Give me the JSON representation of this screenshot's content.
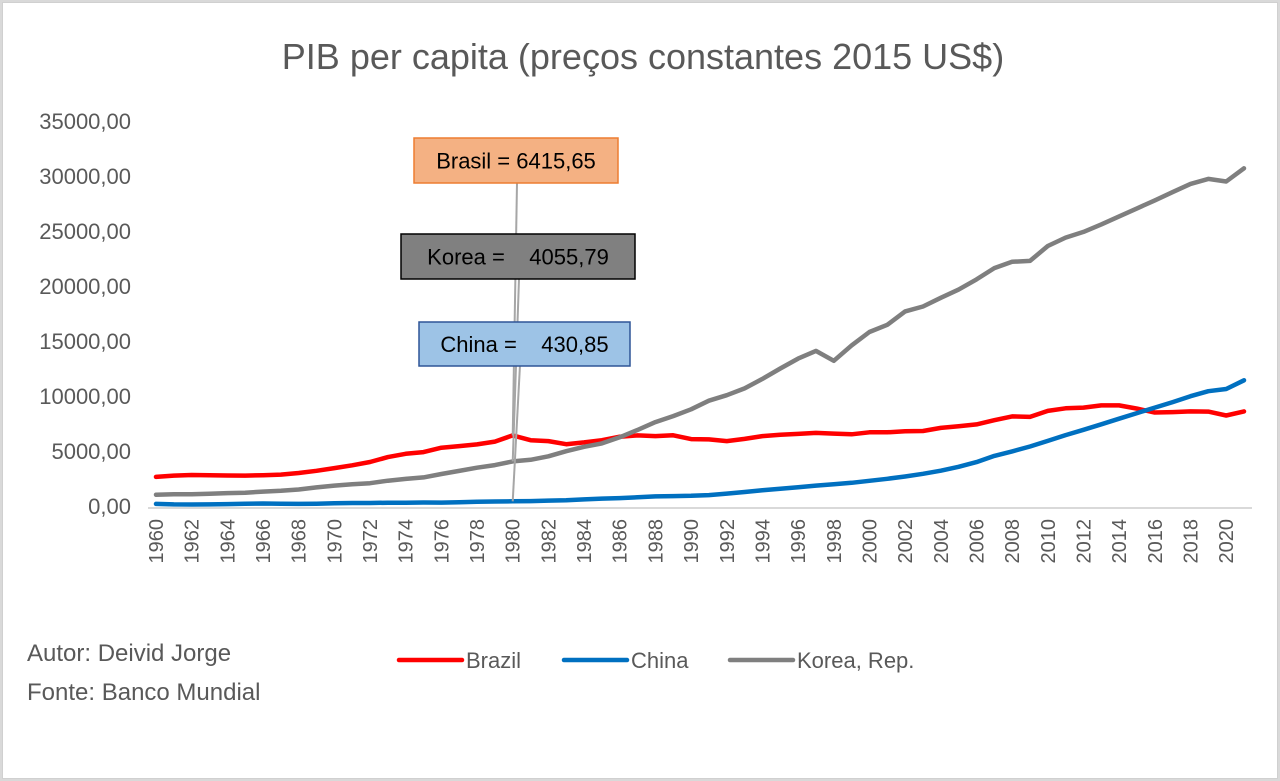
{
  "chart_data": {
    "type": "line",
    "title": "PIB per capita (preços constantes 2015 US$)",
    "xlabel": "",
    "ylabel": "",
    "ylim": [
      0,
      35000
    ],
    "yticks": [
      "0,00",
      "5000,00",
      "10000,00",
      "15000,00",
      "20000,00",
      "25000,00",
      "30000,00",
      "35000,00"
    ],
    "ytick_values": [
      0,
      5000,
      10000,
      15000,
      20000,
      25000,
      30000,
      35000
    ],
    "x": [
      1960,
      1961,
      1962,
      1963,
      1964,
      1965,
      1966,
      1967,
      1968,
      1969,
      1970,
      1971,
      1972,
      1973,
      1974,
      1975,
      1976,
      1977,
      1978,
      1979,
      1980,
      1981,
      1982,
      1983,
      1984,
      1985,
      1986,
      1987,
      1988,
      1989,
      1990,
      1991,
      1992,
      1993,
      1994,
      1995,
      1996,
      1997,
      1998,
      1999,
      2000,
      2001,
      2002,
      2003,
      2004,
      2005,
      2006,
      2007,
      2008,
      2009,
      2010,
      2011,
      2012,
      2013,
      2014,
      2015,
      2016,
      2017,
      2018,
      2019,
      2020,
      2021
    ],
    "xticks": [
      "1960",
      "1962",
      "1964",
      "1966",
      "1968",
      "1970",
      "1972",
      "1974",
      "1976",
      "1978",
      "1980",
      "1982",
      "1984",
      "1986",
      "1988",
      "1990",
      "1992",
      "1994",
      "1996",
      "1998",
      "2000",
      "2002",
      "2004",
      "2006",
      "2008",
      "2010",
      "2012",
      "2014",
      "2016",
      "2018",
      "2020"
    ],
    "grid": false,
    "legend_position": "bottom",
    "series": [
      {
        "name": "Brazil",
        "color": "#ff0000",
        "values": [
          2650,
          2760,
          2820,
          2790,
          2770,
          2760,
          2800,
          2850,
          3000,
          3200,
          3450,
          3700,
          4000,
          4450,
          4750,
          4900,
          5300,
          5450,
          5600,
          5850,
          6415.65,
          5980,
          5900,
          5620,
          5780,
          5980,
          6300,
          6420,
          6350,
          6430,
          6080,
          6050,
          5900,
          6100,
          6350,
          6480,
          6550,
          6650,
          6580,
          6520,
          6700,
          6700,
          6800,
          6820,
          7100,
          7250,
          7420,
          7800,
          8150,
          8100,
          8650,
          8880,
          8950,
          9150,
          9150,
          8850,
          8500,
          8540,
          8600,
          8580,
          8230,
          8600
        ]
      },
      {
        "name": "China",
        "color": "#0070c0",
        "values": [
          190,
          150,
          140,
          150,
          170,
          200,
          230,
          210,
          190,
          210,
          250,
          270,
          270,
          300,
          300,
          320,
          310,
          340,
          380,
          410,
          430.85,
          450,
          490,
          530,
          600,
          670,
          720,
          790,
          870,
          900,
          930,
          990,
          1130,
          1270,
          1430,
          1570,
          1710,
          1850,
          1970,
          2110,
          2290,
          2470,
          2680,
          2930,
          3210,
          3560,
          3990,
          4550,
          4960,
          5410,
          5920,
          6450,
          6930,
          7430,
          7940,
          8450,
          8950,
          9450,
          9980,
          10440,
          10640,
          11430
        ]
      },
      {
        "name": "Korea, Rep.",
        "color": "#7f7f7f",
        "values": [
          1030,
          1060,
          1060,
          1120,
          1170,
          1210,
          1310,
          1380,
          1500,
          1690,
          1850,
          1980,
          2070,
          2300,
          2460,
          2600,
          2910,
          3190,
          3480,
          3720,
          4055.79,
          4200,
          4520,
          4980,
          5380,
          5690,
          6250,
          6920,
          7630,
          8170,
          8790,
          9570,
          10070,
          10690,
          11550,
          12500,
          13400,
          14100,
          13200,
          14600,
          15820,
          16470,
          17690,
          18140,
          18930,
          19670,
          20600,
          21630,
          22200,
          22280,
          23640,
          24400,
          24920,
          25600,
          26330,
          27050,
          27780,
          28540,
          29280,
          29740,
          29500,
          30700
        ]
      }
    ],
    "annotations": [
      {
        "year": 1980,
        "label": "Brasil = 6415,65",
        "series": "Brazil",
        "fill": "#f4b183",
        "border": "#ed7d31"
      },
      {
        "year": 1980,
        "label": "Korea =    4055,79",
        "series": "Korea, Rep.",
        "fill": "#808080",
        "border": "#000000"
      },
      {
        "year": 1980,
        "label": "China =    430,85",
        "series": "China",
        "fill": "#9dc3e6",
        "border": "#2f5597"
      }
    ]
  },
  "footer": {
    "author": "Autor: Deivid Jorge",
    "source": "Fonte: Banco Mundial"
  }
}
